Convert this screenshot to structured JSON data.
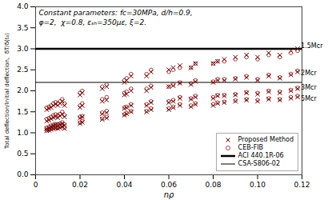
{
  "chart_data": {
    "type": "scatter",
    "xlabel": "nρ",
    "ylabel": "Total deflection/Initial deflection,  δT/δ(t₀)",
    "annotations": [
      "Constant parameters: fc=30MPa, d/h=0.9,",
      "φ=2,  χ=0.8, εₛₕ=350με, ξ=2."
    ],
    "point_labels": [
      {
        "text": "1.5Mcr",
        "x": 0.1195,
        "y": 3.06
      },
      {
        "text": "2Mcr",
        "x": 0.1195,
        "y": 2.42
      },
      {
        "text": "3Mcr",
        "x": 0.1195,
        "y": 2.07
      },
      {
        "text": "5Mcr",
        "x": 0.1195,
        "y": 1.82
      }
    ],
    "xlim": [
      0,
      0.12
    ],
    "ylim": [
      0.0,
      4.0
    ],
    "xticks": [
      0,
      0.02,
      0.04,
      0.06,
      0.08,
      {
        "value": 0.1,
        "label": "0.10"
      },
      0.12
    ],
    "yticks": [
      {
        "value": 0,
        "label": "0.0"
      },
      {
        "value": 0.5,
        "label": "0.5"
      },
      {
        "value": 1,
        "label": "1.0"
      },
      {
        "value": 1.5,
        "label": "1.5"
      },
      {
        "value": 2,
        "label": "2.0"
      },
      {
        "value": 2.5,
        "label": "2.5"
      },
      {
        "value": 3,
        "label": "3.0"
      },
      {
        "value": 3.5,
        "label": "3.5"
      },
      {
        "value": 4,
        "label": "4.0"
      }
    ],
    "grid": false,
    "legend": "lower right",
    "series": [
      {
        "name": "Proposed Method",
        "type": "scatter",
        "marker": "x",
        "color": "#6b0000",
        "x": [
          0.005,
          0.006,
          0.007,
          0.008,
          0.009,
          0.01,
          0.011,
          0.012,
          0.013,
          0.02,
          0.021,
          0.03,
          0.032,
          0.04,
          0.041,
          0.043,
          0.05,
          0.052,
          0.06,
          0.062,
          0.065,
          0.07,
          0.072,
          0.08,
          0.082,
          0.085,
          0.09,
          0.095,
          0.1,
          0.105,
          0.11,
          0.115,
          0.118,
          0.005,
          0.006,
          0.007,
          0.008,
          0.009,
          0.01,
          0.011,
          0.012,
          0.013,
          0.02,
          0.021,
          0.03,
          0.032,
          0.04,
          0.041,
          0.043,
          0.05,
          0.052,
          0.06,
          0.062,
          0.065,
          0.07,
          0.072,
          0.08,
          0.082,
          0.085,
          0.09,
          0.095,
          0.1,
          0.105,
          0.11,
          0.115,
          0.118,
          0.005,
          0.006,
          0.007,
          0.008,
          0.009,
          0.01,
          0.011,
          0.012,
          0.013,
          0.02,
          0.021,
          0.03,
          0.032,
          0.04,
          0.041,
          0.043,
          0.05,
          0.052,
          0.06,
          0.062,
          0.065,
          0.07,
          0.072,
          0.08,
          0.082,
          0.085,
          0.09,
          0.095,
          0.1,
          0.105,
          0.11,
          0.115,
          0.118,
          0.005,
          0.006,
          0.007,
          0.008,
          0.009,
          0.01,
          0.011,
          0.012,
          0.013,
          0.02,
          0.021,
          0.03,
          0.032,
          0.04,
          0.041,
          0.043,
          0.05,
          0.052,
          0.06,
          0.062,
          0.065,
          0.07,
          0.072,
          0.08,
          0.082,
          0.085,
          0.09,
          0.095,
          0.1,
          0.105,
          0.11,
          0.115,
          0.118
        ],
        "values": [
          1.55,
          1.58,
          1.6,
          1.65,
          1.68,
          1.65,
          1.7,
          1.75,
          1.65,
          1.9,
          1.95,
          2.05,
          2.1,
          2.2,
          2.25,
          2.35,
          2.35,
          2.45,
          2.5,
          2.55,
          2.6,
          2.55,
          2.65,
          2.65,
          2.7,
          2.75,
          2.8,
          2.85,
          2.8,
          2.9,
          2.85,
          2.95,
          3.0,
          1.28,
          1.3,
          1.33,
          1.36,
          1.38,
          1.36,
          1.4,
          1.44,
          1.38,
          1.6,
          1.65,
          1.75,
          1.78,
          1.9,
          1.92,
          2.0,
          2.0,
          2.08,
          2.1,
          2.12,
          2.18,
          2.15,
          2.22,
          2.2,
          2.25,
          2.25,
          2.28,
          2.32,
          2.25,
          2.35,
          2.3,
          2.38,
          2.45,
          1.1,
          1.12,
          1.15,
          1.17,
          1.19,
          1.18,
          1.2,
          1.22,
          1.18,
          1.35,
          1.38,
          1.45,
          1.48,
          1.58,
          1.6,
          1.65,
          1.65,
          1.72,
          1.72,
          1.75,
          1.82,
          1.8,
          1.85,
          1.82,
          1.88,
          1.88,
          1.9,
          1.95,
          1.92,
          1.98,
          1.95,
          2.0,
          2.05,
          1.05,
          1.06,
          1.08,
          1.1,
          1.11,
          1.1,
          1.12,
          1.15,
          1.1,
          1.22,
          1.25,
          1.32,
          1.35,
          1.42,
          1.45,
          1.5,
          1.5,
          1.55,
          1.55,
          1.6,
          1.65,
          1.62,
          1.68,
          1.65,
          1.7,
          1.72,
          1.75,
          1.78,
          1.75,
          1.8,
          1.78,
          1.82,
          1.85
        ]
      },
      {
        "name": "CEB-FIB",
        "type": "scatter",
        "marker": "o",
        "color": "#8b1a1a",
        "x": [
          0.005,
          0.006,
          0.007,
          0.008,
          0.009,
          0.01,
          0.011,
          0.012,
          0.013,
          0.02,
          0.021,
          0.03,
          0.032,
          0.04,
          0.041,
          0.043,
          0.05,
          0.052,
          0.06,
          0.062,
          0.065,
          0.07,
          0.072,
          0.08,
          0.082,
          0.085,
          0.09,
          0.095,
          0.1,
          0.105,
          0.11,
          0.115,
          0.118,
          0.005,
          0.006,
          0.007,
          0.008,
          0.009,
          0.01,
          0.011,
          0.012,
          0.013,
          0.02,
          0.021,
          0.03,
          0.032,
          0.04,
          0.041,
          0.043,
          0.05,
          0.052,
          0.06,
          0.062,
          0.065,
          0.07,
          0.072,
          0.08,
          0.082,
          0.085,
          0.09,
          0.095,
          0.1,
          0.105,
          0.11,
          0.115,
          0.118,
          0.005,
          0.006,
          0.007,
          0.008,
          0.009,
          0.01,
          0.011,
          0.012,
          0.013,
          0.02,
          0.021,
          0.03,
          0.032,
          0.04,
          0.041,
          0.043,
          0.05,
          0.052,
          0.06,
          0.062,
          0.065,
          0.07,
          0.072,
          0.08,
          0.082,
          0.085,
          0.09,
          0.095,
          0.1,
          0.105,
          0.11,
          0.115,
          0.118,
          0.005,
          0.006,
          0.007,
          0.008,
          0.009,
          0.01,
          0.011,
          0.012,
          0.013,
          0.02,
          0.021,
          0.03,
          0.032,
          0.04,
          0.041,
          0.043,
          0.05,
          0.052,
          0.06,
          0.062,
          0.065,
          0.07,
          0.072,
          0.08,
          0.082,
          0.085,
          0.09,
          0.095,
          0.1,
          0.105,
          0.11,
          0.115,
          0.118
        ],
        "values": [
          1.6,
          1.62,
          1.65,
          1.7,
          1.73,
          1.7,
          1.75,
          1.8,
          1.7,
          1.95,
          2.0,
          2.1,
          2.15,
          2.25,
          2.3,
          2.4,
          2.4,
          2.5,
          2.45,
          2.5,
          2.55,
          2.55,
          2.65,
          2.65,
          2.7,
          2.7,
          2.75,
          2.8,
          2.75,
          2.85,
          2.8,
          2.9,
          2.95,
          1.33,
          1.35,
          1.38,
          1.42,
          1.44,
          1.42,
          1.45,
          1.5,
          1.42,
          1.65,
          1.7,
          1.8,
          1.85,
          1.95,
          1.98,
          2.05,
          2.05,
          2.12,
          2.1,
          2.15,
          2.2,
          2.18,
          2.25,
          2.22,
          2.28,
          2.28,
          2.3,
          2.35,
          2.28,
          2.38,
          2.32,
          2.4,
          2.48,
          1.12,
          1.14,
          1.17,
          1.19,
          1.21,
          1.2,
          1.22,
          1.25,
          1.2,
          1.38,
          1.4,
          1.48,
          1.52,
          1.6,
          1.62,
          1.68,
          1.68,
          1.75,
          1.75,
          1.78,
          1.85,
          1.82,
          1.88,
          1.85,
          1.9,
          1.9,
          1.92,
          1.97,
          1.95,
          2.0,
          1.98,
          2.02,
          2.07,
          1.06,
          1.07,
          1.1,
          1.12,
          1.13,
          1.12,
          1.14,
          1.17,
          1.12,
          1.24,
          1.28,
          1.34,
          1.38,
          1.44,
          1.47,
          1.52,
          1.52,
          1.58,
          1.58,
          1.62,
          1.68,
          1.65,
          1.7,
          1.68,
          1.72,
          1.74,
          1.77,
          1.8,
          1.78,
          1.82,
          1.8,
          1.85,
          1.88
        ]
      },
      {
        "name": "ACI 440.1R-06",
        "type": "hline",
        "line_style": "thick",
        "color": "#000000",
        "values": [
          3.0
        ]
      },
      {
        "name": "CSA-S806-02",
        "type": "hline",
        "line_style": "thin",
        "color": "#000000",
        "values": [
          2.2
        ]
      }
    ]
  }
}
